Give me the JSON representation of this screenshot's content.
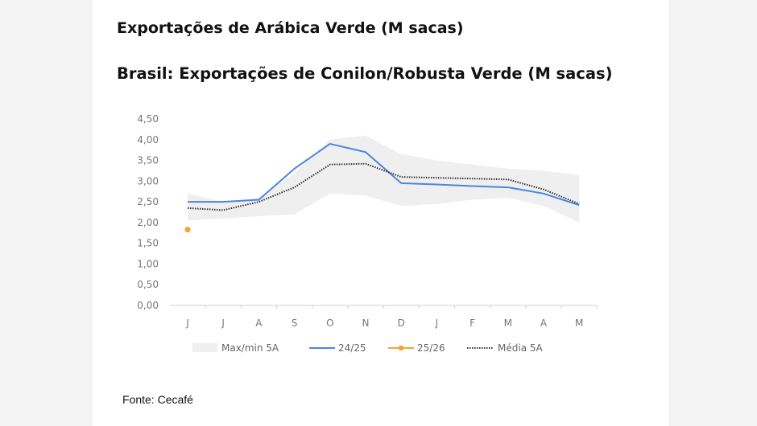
{
  "titles": {
    "top": "Exportações de Arábica Verde (M sacas)",
    "main": "Brasil: Exportações de Conilon/Robusta Verde (M sacas)"
  },
  "source": "Fonte: Cecafé",
  "chart_data": {
    "type": "line",
    "categories": [
      "J",
      "J",
      "A",
      "S",
      "O",
      "N",
      "D",
      "J",
      "F",
      "M",
      "A",
      "M"
    ],
    "ylim": [
      0,
      4.5
    ],
    "yticks": [
      "0,00",
      "0,50",
      "1,00",
      "1,50",
      "2,00",
      "2,50",
      "3,00",
      "3,50",
      "4,00",
      "4,50"
    ],
    "grid": false,
    "legend_position": "bottom",
    "band": {
      "name": "Max/min 5A",
      "color": "#efefef",
      "max": [
        2.7,
        2.5,
        2.6,
        3.2,
        4.0,
        4.1,
        3.65,
        3.5,
        3.4,
        3.3,
        3.25,
        3.15
      ],
      "min": [
        2.05,
        2.1,
        2.15,
        2.2,
        2.7,
        2.65,
        2.4,
        2.45,
        2.55,
        2.6,
        2.4,
        2.0
      ]
    },
    "series": [
      {
        "name": "24/25",
        "color": "#4a86e0",
        "style": "solid",
        "values": [
          2.5,
          2.5,
          2.55,
          3.3,
          3.9,
          3.7,
          2.95,
          2.92,
          2.88,
          2.85,
          2.7,
          2.42
        ]
      },
      {
        "name": "25/26",
        "color": "#f3a53a",
        "style": "marker",
        "values": [
          1.83,
          null,
          null,
          null,
          null,
          null,
          null,
          null,
          null,
          null,
          null,
          null
        ]
      },
      {
        "name": "Média 5A",
        "color": "#333333",
        "style": "dotted",
        "values": [
          2.35,
          2.3,
          2.5,
          2.85,
          3.4,
          3.42,
          3.1,
          3.08,
          3.06,
          3.04,
          2.8,
          2.45
        ]
      }
    ]
  }
}
